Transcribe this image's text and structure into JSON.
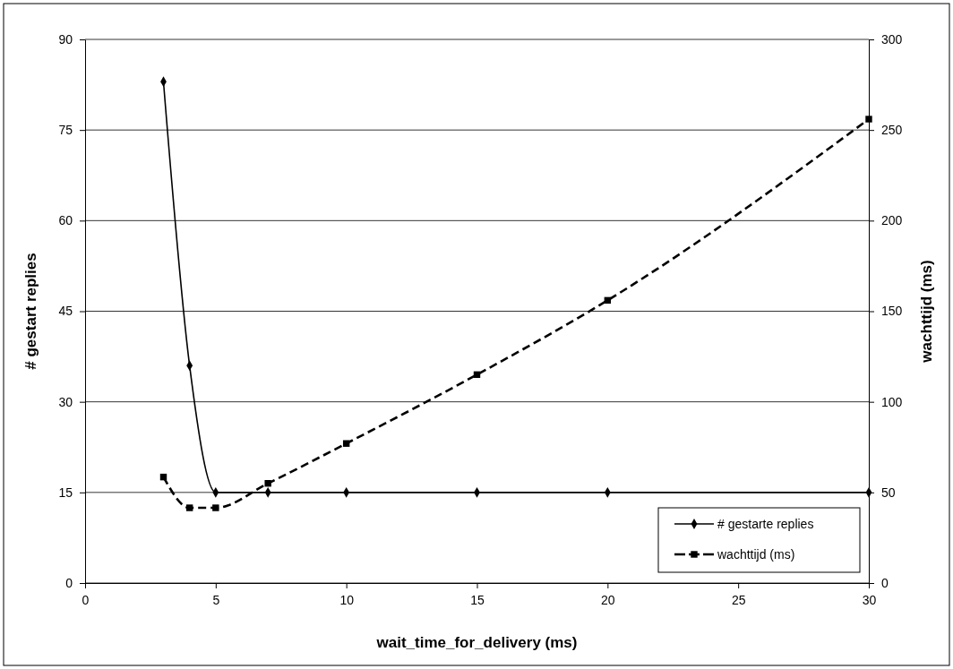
{
  "chart_data": {
    "type": "line",
    "xlabel": "wait_time_for_delivery (ms)",
    "ylabel": "# gestart replies",
    "y2label": "wachttijd (ms)",
    "x": [
      3,
      4,
      5,
      7,
      10,
      15,
      20,
      30
    ],
    "series": [
      {
        "name": "# gestarte replies",
        "color": "#000000",
        "values": [
          83,
          36,
          15,
          15,
          15,
          15,
          15,
          15
        ],
        "marker": "diamond",
        "line_style": "solid"
      },
      {
        "name": "wachttijd (ms)",
        "color": "#000000",
        "values": [
          58.5,
          41.5,
          41.5,
          55,
          77,
          115,
          156,
          256
        ],
        "marker": "square",
        "line_style": "dashed",
        "axis": "y2"
      }
    ],
    "xlim": [
      0,
      30
    ],
    "xticks": [
      0,
      5,
      10,
      15,
      20,
      25,
      30
    ],
    "ylim": [
      0,
      90
    ],
    "yticks": [
      0,
      15,
      30,
      45,
      60,
      75,
      90
    ],
    "y2lim": [
      0,
      300
    ],
    "y2ticks": [
      0,
      50,
      100,
      150,
      200,
      250,
      300
    ],
    "grid": "y",
    "legend": "bottom right"
  }
}
